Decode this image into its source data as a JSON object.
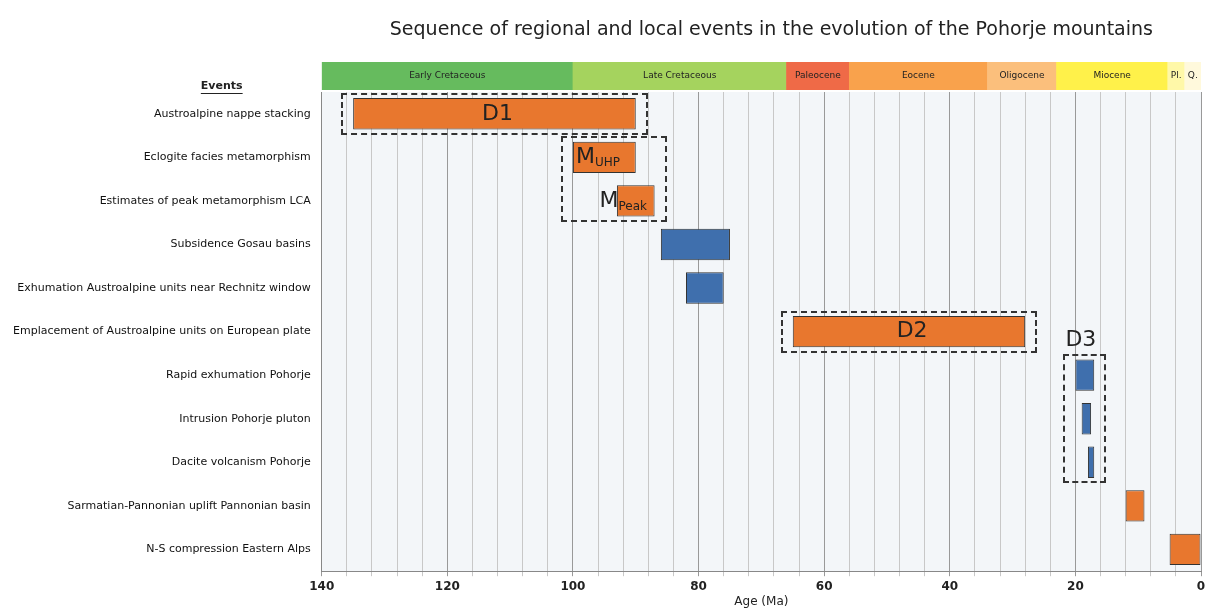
{
  "chart_data": [
    {
      "type": "bar",
      "orientation": "horizontal",
      "stacked": true,
      "categories": [
        null
      ],
      "title": "Sequence of regional and local events in the evolution of the Pohorje mountains",
      "series": [
        {
          "name": "Q.",
          "color": "#fff9dc",
          "values": [
            2.6
          ]
        },
        {
          "name": "Pl.",
          "color": "#fff8a8",
          "values": [
            2.7
          ]
        },
        {
          "name": "Miocene",
          "color": "#fff14a",
          "values": [
            17.7
          ]
        },
        {
          "name": "Oligocene",
          "color": "#fbbf7c",
          "values": [
            11
          ]
        },
        {
          "name": "Eocene",
          "color": "#f9a24c",
          "values": [
            22
          ]
        },
        {
          "name": "Paleocene",
          "color": "#ef6a47",
          "values": [
            10
          ]
        },
        {
          "name": "Late Cretaceous",
          "color": "#a5d35e",
          "values": [
            34
          ]
        },
        {
          "name": "Early Cretaceous",
          "color": "#66bb5e",
          "values": [
            40
          ]
        }
      ],
      "xlim": [
        140,
        0
      ],
      "tick_labels": false,
      "legend": false
    },
    {
      "type": "bar",
      "orientation": "horizontal",
      "xlabel": "Age (Ma)",
      "ylabel": "Events",
      "categories": [
        "Austroalpine nappe stacking",
        "Eclogite facies metamorphism",
        "Estimates of peak metamorphism LCA",
        "Subsidence Gosau basins",
        "Exhumation Austroalpine units near Rechnitz window",
        "Emplacement of Austroalpine units on European plate",
        "Rapid exhumation Pohorje",
        "Intrusion Pohorje pluton",
        "Dacite volcanism Pohorje",
        "Sarmatian-Pannonian uplift Pannonian basin",
        "N-S compression Eastern Alps"
      ],
      "base": [
        90,
        90,
        87,
        75,
        76,
        28,
        17,
        17.5,
        17,
        9,
        0
      ],
      "values": [
        45,
        10,
        6,
        11,
        6,
        37,
        3,
        1.5,
        1,
        3,
        5
      ],
      "colors": [
        "#e8772e",
        "#e8772e",
        "#e8772e",
        "#3f6fad",
        "#3f6fad",
        "#e8772e",
        "#3f6fad",
        "#3f6fad",
        "#3f6fad",
        "#e8772e",
        "#e8772e"
      ],
      "xlim": [
        140,
        0
      ],
      "xticks": [
        140,
        {
          "value": 136,
          "label": null
        },
        {
          "value": 132,
          "label": null
        },
        {
          "value": 128,
          "label": null
        },
        {
          "value": 124,
          "label": null
        },
        120,
        {
          "value": 116,
          "label": null
        },
        {
          "value": 112,
          "label": null
        },
        {
          "value": 108,
          "label": null
        },
        {
          "value": 104,
          "label": null
        },
        100,
        {
          "value": 96,
          "label": null
        },
        {
          "value": 92,
          "label": null
        },
        {
          "value": 88,
          "label": null
        },
        {
          "value": 84,
          "label": null
        },
        80,
        {
          "value": 76,
          "label": null
        },
        {
          "value": 72,
          "label": null
        },
        {
          "value": 68,
          "label": null
        },
        {
          "value": 64,
          "label": null
        },
        60,
        {
          "value": 56,
          "label": null
        },
        {
          "value": 52,
          "label": null
        },
        {
          "value": 48,
          "label": null
        },
        {
          "value": 44,
          "label": null
        },
        40,
        {
          "value": 36,
          "label": null
        },
        {
          "value": 32,
          "label": null
        },
        {
          "value": 28,
          "label": null
        },
        {
          "value": 24,
          "label": null
        },
        20,
        {
          "value": 16,
          "label": null
        },
        {
          "value": 12,
          "label": null
        },
        {
          "value": 8,
          "label": null
        },
        {
          "value": 4,
          "label": null
        },
        0
      ],
      "grid": "x",
      "legend": false,
      "annotations": [
        {
          "text": "D1",
          "x": 112,
          "y": "Austroalpine nappe stacking"
        },
        {
          "text": "M$_{UHP}$",
          "x": 96,
          "y": "Eclogite facies metamorphism"
        },
        {
          "text": "M$_{Peak}$",
          "x": 92,
          "y": "Estimates of peak metamorphism LCA"
        },
        {
          "text": "D2",
          "x": 46,
          "y": "Emplacement of Austroalpine units on European plate"
        },
        "D3"
      ]
    }
  ]
}
